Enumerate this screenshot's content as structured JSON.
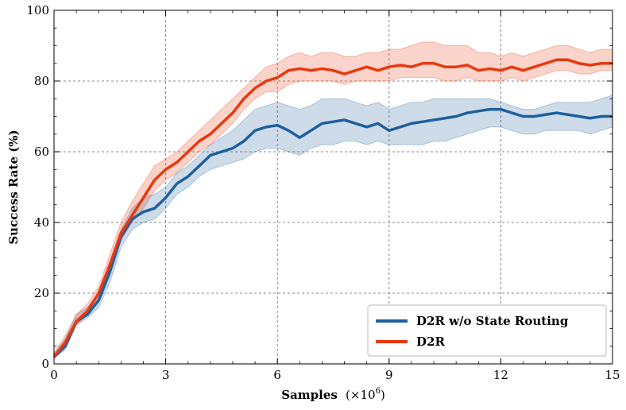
{
  "chart_data": {
    "type": "line",
    "title": "",
    "xlabel": "Samples",
    "xlabel_unit": "(×10",
    "xlabel_exp": "6",
    "xlabel_close": ")",
    "ylabel": "Success Rate (%)",
    "xlim": [
      0,
      15
    ],
    "ylim": [
      0,
      100
    ],
    "xticks": [
      0,
      3,
      6,
      9,
      12,
      15
    ],
    "yticks": [
      0,
      20,
      40,
      60,
      80,
      100
    ],
    "grid": true,
    "legend_position": "bottom-right",
    "series": [
      {
        "name": "D2R w/o State Routing",
        "color": "#1f5fa0",
        "x": [
          0,
          0.3,
          0.6,
          0.9,
          1.2,
          1.5,
          1.8,
          2.1,
          2.4,
          2.7,
          3.0,
          3.3,
          3.6,
          3.9,
          4.2,
          4.5,
          4.8,
          5.1,
          5.4,
          5.7,
          6.0,
          6.3,
          6.6,
          6.9,
          7.2,
          7.5,
          7.8,
          8.1,
          8.4,
          8.7,
          9.0,
          9.3,
          9.6,
          9.9,
          10.2,
          10.5,
          10.8,
          11.1,
          11.4,
          11.7,
          12.0,
          12.3,
          12.6,
          12.9,
          13.2,
          13.5,
          13.8,
          14.1,
          14.4,
          14.7,
          15.0
        ],
        "y": [
          2,
          5,
          12,
          14,
          18,
          26,
          36,
          41,
          43,
          44,
          47,
          51,
          53,
          56,
          59,
          60,
          61,
          63,
          66,
          67,
          67.5,
          66,
          64,
          66,
          68,
          68.5,
          69,
          68,
          67,
          68,
          66,
          67,
          68,
          68.5,
          69,
          69.5,
          70,
          71,
          71.5,
          72,
          72,
          71,
          70,
          70,
          70.5,
          71,
          70.5,
          70,
          69.5,
          70,
          70
        ],
        "lower": [
          1.5,
          4,
          11,
          13,
          16,
          23,
          33,
          38,
          40,
          41,
          44,
          48,
          50,
          53,
          55,
          56,
          57,
          58,
          60,
          61,
          61,
          60,
          59,
          61,
          62,
          62,
          63,
          63,
          62,
          63,
          62,
          62,
          62,
          62,
          63,
          63,
          64,
          65,
          66,
          67,
          67,
          66,
          65,
          65,
          66,
          66,
          66,
          66,
          65,
          66,
          67
        ],
        "upper": [
          3,
          7,
          14,
          16,
          20,
          29,
          38,
          44,
          47,
          48,
          50,
          54,
          56,
          59,
          62,
          64,
          66,
          69,
          72,
          73,
          74,
          73,
          72,
          73,
          75,
          75,
          75,
          74,
          73,
          74,
          72,
          73,
          74,
          74,
          75,
          75,
          75,
          75,
          75,
          75,
          74,
          73,
          72,
          72,
          73,
          74,
          74,
          74,
          74,
          75,
          76
        ]
      },
      {
        "name": "D2R",
        "color": "#e8380f",
        "x": [
          0,
          0.3,
          0.6,
          0.9,
          1.2,
          1.5,
          1.8,
          2.1,
          2.4,
          2.7,
          3.0,
          3.3,
          3.6,
          3.9,
          4.2,
          4.5,
          4.8,
          5.1,
          5.4,
          5.7,
          6.0,
          6.3,
          6.6,
          6.9,
          7.2,
          7.5,
          7.8,
          8.1,
          8.4,
          8.7,
          9.0,
          9.3,
          9.6,
          9.9,
          10.2,
          10.5,
          10.8,
          11.1,
          11.4,
          11.7,
          12.0,
          12.3,
          12.6,
          12.9,
          13.2,
          13.5,
          13.8,
          14.1,
          14.4,
          14.7,
          15.0
        ],
        "y": [
          2,
          6,
          12,
          15,
          20,
          28,
          37,
          42,
          47,
          52,
          55,
          57,
          60,
          63,
          65,
          68,
          71,
          75,
          78,
          80,
          81,
          83,
          83.5,
          83,
          83.5,
          83,
          82,
          83,
          84,
          83,
          84,
          84.5,
          84,
          85,
          85,
          84,
          84,
          84.5,
          83,
          83.5,
          83,
          84,
          83,
          84,
          85,
          86,
          86,
          85,
          84.5,
          85,
          85
        ],
        "lower": [
          1.5,
          5,
          11,
          14,
          18,
          26,
          35,
          40,
          44,
          49,
          52,
          54,
          57,
          60,
          62,
          65,
          68,
          72,
          75,
          77,
          77,
          79,
          80,
          80,
          80,
          80,
          79,
          80,
          80,
          80,
          80,
          81,
          81,
          81,
          81,
          80,
          80,
          81,
          80,
          80,
          80,
          81,
          80,
          81,
          82,
          83,
          83,
          82,
          82,
          83,
          83
        ],
        "upper": [
          3,
          8,
          14,
          17,
          22,
          31,
          40,
          46,
          51,
          56,
          58,
          60,
          63,
          66,
          69,
          72,
          75,
          78,
          81,
          84,
          85,
          87,
          88,
          87,
          88,
          88,
          87,
          87,
          88,
          88,
          89,
          89,
          90,
          91,
          91,
          90,
          90,
          90,
          88,
          88,
          87,
          88,
          87,
          88,
          89,
          90,
          90,
          89,
          88,
          89,
          89
        ]
      }
    ]
  }
}
